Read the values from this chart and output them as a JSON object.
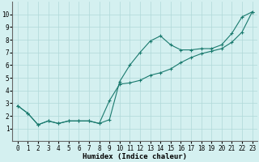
{
  "series1_x": [
    0,
    1,
    2,
    3,
    4,
    5,
    6,
    7,
    8,
    9,
    10,
    11,
    12,
    13,
    14,
    15,
    16,
    17,
    18,
    19,
    20,
    21,
    22,
    23
  ],
  "series1_y": [
    2.8,
    2.2,
    1.3,
    1.6,
    1.4,
    1.6,
    1.6,
    1.6,
    1.4,
    1.7,
    4.7,
    6.0,
    7.0,
    7.9,
    8.3,
    7.6,
    7.2,
    7.2,
    7.3,
    7.3,
    7.6,
    8.5,
    9.8,
    10.2
  ],
  "series2_x": [
    0,
    1,
    2,
    3,
    4,
    5,
    6,
    7,
    8,
    9,
    10,
    11,
    12,
    13,
    14,
    15,
    16,
    17,
    18,
    19,
    20,
    21,
    22,
    23
  ],
  "series2_y": [
    2.8,
    2.2,
    1.3,
    1.6,
    1.4,
    1.6,
    1.6,
    1.6,
    1.4,
    3.2,
    4.5,
    4.6,
    4.8,
    5.2,
    5.4,
    5.7,
    6.2,
    6.6,
    6.9,
    7.1,
    7.3,
    7.8,
    8.6,
    10.2
  ],
  "line_color": "#1a7a6e",
  "bg_color": "#d4f0f0",
  "grid_color": "#b0d8d8",
  "xlabel": "Humidex (Indice chaleur)",
  "xlabel_fontsize": 6.5,
  "xlabel_fontfamily": "monospace",
  "tick_fontsize": 5.5,
  "tick_fontfamily": "monospace",
  "xlim": [
    -0.5,
    23.5
  ],
  "ylim": [
    0,
    11
  ],
  "xticks": [
    0,
    1,
    2,
    3,
    4,
    5,
    6,
    7,
    8,
    9,
    10,
    11,
    12,
    13,
    14,
    15,
    16,
    17,
    18,
    19,
    20,
    21,
    22,
    23
  ],
  "yticks": [
    1,
    2,
    3,
    4,
    5,
    6,
    7,
    8,
    9,
    10
  ]
}
